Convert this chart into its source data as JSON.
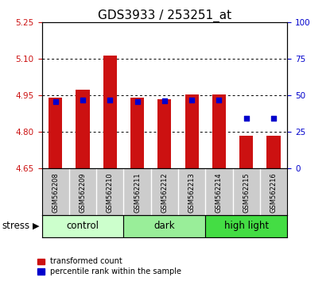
{
  "title": "GDS3933 / 253251_at",
  "samples": [
    "GSM562208",
    "GSM562209",
    "GSM562210",
    "GSM562211",
    "GSM562212",
    "GSM562213",
    "GSM562214",
    "GSM562215",
    "GSM562216"
  ],
  "red_values": [
    4.94,
    4.975,
    5.115,
    4.94,
    4.935,
    4.955,
    4.955,
    4.785,
    4.785
  ],
  "blue_values": [
    4.925,
    4.93,
    4.93,
    4.925,
    4.928,
    4.932,
    4.93,
    4.856,
    4.856
  ],
  "ymin": 4.65,
  "ymax": 5.25,
  "yticks_left": [
    4.65,
    4.8,
    4.95,
    5.1,
    5.25
  ],
  "yticks_right": [
    0,
    25,
    50,
    75,
    100
  ],
  "groups": [
    {
      "label": "control",
      "start": 0,
      "end": 3,
      "color": "#ccffcc"
    },
    {
      "label": "dark",
      "start": 3,
      "end": 6,
      "color": "#99ee99"
    },
    {
      "label": "high light",
      "start": 6,
      "end": 9,
      "color": "#44dd44"
    }
  ],
  "bar_color": "#cc1111",
  "dot_color": "#0000cc",
  "bar_width": 0.5,
  "dot_size": 18,
  "stress_label": "stress",
  "legend_red": "transformed count",
  "legend_blue": "percentile rank within the sample",
  "background_color": "#ffffff",
  "plot_bg": "#ffffff",
  "tick_area_bg": "#cccccc",
  "left_tick_color": "#cc1111",
  "right_tick_color": "#0000cc",
  "title_fontsize": 11,
  "tick_fontsize": 7.5,
  "sample_fontsize": 6,
  "label_fontsize": 8.5
}
